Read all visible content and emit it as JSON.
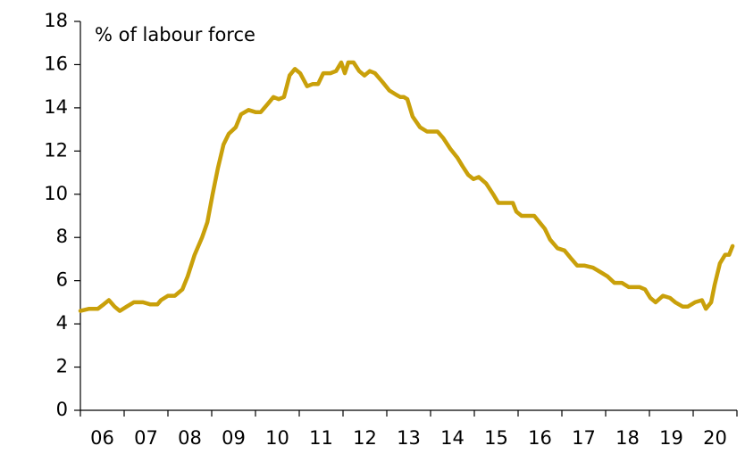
{
  "chart_data": {
    "type": "line",
    "y_label": "% of labour force",
    "xlim": [
      2006,
      2021
    ],
    "xticks": [
      {
        "value": 2006.5,
        "label": "06"
      },
      {
        "value": 2007.5,
        "label": "07"
      },
      {
        "value": 2008.5,
        "label": "08"
      },
      {
        "value": 2009.5,
        "label": "09"
      },
      {
        "value": 2010.5,
        "label": "10"
      },
      {
        "value": 2011.5,
        "label": "11"
      },
      {
        "value": 2012.5,
        "label": "12"
      },
      {
        "value": 2013.5,
        "label": "13"
      },
      {
        "value": 2014.5,
        "label": "14"
      },
      {
        "value": 2015.5,
        "label": "15"
      },
      {
        "value": 2016.5,
        "label": "16"
      },
      {
        "value": 2017.5,
        "label": "17"
      },
      {
        "value": 2018.5,
        "label": "18"
      },
      {
        "value": 2019.5,
        "label": "19"
      },
      {
        "value": 2020.5,
        "label": "20"
      }
    ],
    "ylim": [
      0,
      18
    ],
    "yticks": [
      0,
      2,
      4,
      6,
      8,
      10,
      12,
      14,
      16,
      18
    ],
    "grid": false,
    "x": [
      2006.0,
      2006.2,
      2006.4,
      2006.53,
      2006.65,
      2006.78,
      2006.9,
      2007.06,
      2007.22,
      2007.43,
      2007.6,
      2007.76,
      2007.84,
      2008.0,
      2008.16,
      2008.33,
      2008.45,
      2008.61,
      2008.78,
      2008.9,
      2009.02,
      2009.14,
      2009.27,
      2009.39,
      2009.55,
      2009.67,
      2009.84,
      2010.0,
      2010.12,
      2010.29,
      2010.41,
      2010.53,
      2010.65,
      2010.78,
      2010.9,
      2011.02,
      2011.18,
      2011.31,
      2011.43,
      2011.55,
      2011.71,
      2011.84,
      2011.96,
      2012.04,
      2012.12,
      2012.24,
      2012.37,
      2012.49,
      2012.61,
      2012.73,
      2012.9,
      2013.06,
      2013.22,
      2013.31,
      2013.39,
      2013.47,
      2013.59,
      2013.76,
      2013.92,
      2014.04,
      2014.16,
      2014.29,
      2014.45,
      2014.61,
      2014.73,
      2014.86,
      2014.98,
      2015.1,
      2015.27,
      2015.43,
      2015.55,
      2015.67,
      2015.88,
      2015.96,
      2016.08,
      2016.37,
      2016.49,
      2016.61,
      2016.73,
      2016.9,
      2017.06,
      2017.22,
      2017.35,
      2017.51,
      2017.71,
      2017.88,
      2018.04,
      2018.2,
      2018.37,
      2018.53,
      2018.78,
      2018.9,
      2019.02,
      2019.14,
      2019.31,
      2019.47,
      2019.59,
      2019.76,
      2019.88,
      2020.04,
      2020.2,
      2020.29,
      2020.41,
      2020.49,
      2020.61,
      2020.73,
      2020.82,
      2020.9
    ],
    "series": [
      {
        "color": "#c9a00a",
        "values": [
          4.6,
          4.7,
          4.7,
          4.9,
          5.1,
          4.8,
          4.6,
          4.8,
          5.0,
          5.0,
          4.9,
          4.9,
          5.1,
          5.3,
          5.3,
          5.6,
          6.2,
          7.2,
          8.0,
          8.7,
          10.0,
          11.2,
          12.3,
          12.8,
          13.1,
          13.7,
          13.9,
          13.8,
          13.8,
          14.2,
          14.5,
          14.4,
          14.5,
          15.5,
          15.8,
          15.6,
          15.0,
          15.1,
          15.1,
          15.6,
          15.6,
          15.7,
          16.1,
          15.6,
          16.1,
          16.1,
          15.7,
          15.5,
          15.7,
          15.6,
          15.2,
          14.8,
          14.6,
          14.5,
          14.5,
          14.4,
          13.6,
          13.1,
          12.9,
          12.9,
          12.9,
          12.6,
          12.1,
          11.7,
          11.3,
          10.9,
          10.7,
          10.8,
          10.5,
          10.0,
          9.6,
          9.6,
          9.6,
          9.2,
          9.0,
          9.0,
          8.7,
          8.4,
          7.9,
          7.5,
          7.4,
          7.0,
          6.7,
          6.7,
          6.6,
          6.4,
          6.2,
          5.9,
          5.9,
          5.7,
          5.7,
          5.6,
          5.2,
          5.0,
          5.3,
          5.2,
          5.0,
          4.8,
          4.8,
          5.0,
          5.1,
          4.7,
          5.0,
          5.8,
          6.8,
          7.2,
          7.2,
          7.6
        ]
      }
    ]
  }
}
